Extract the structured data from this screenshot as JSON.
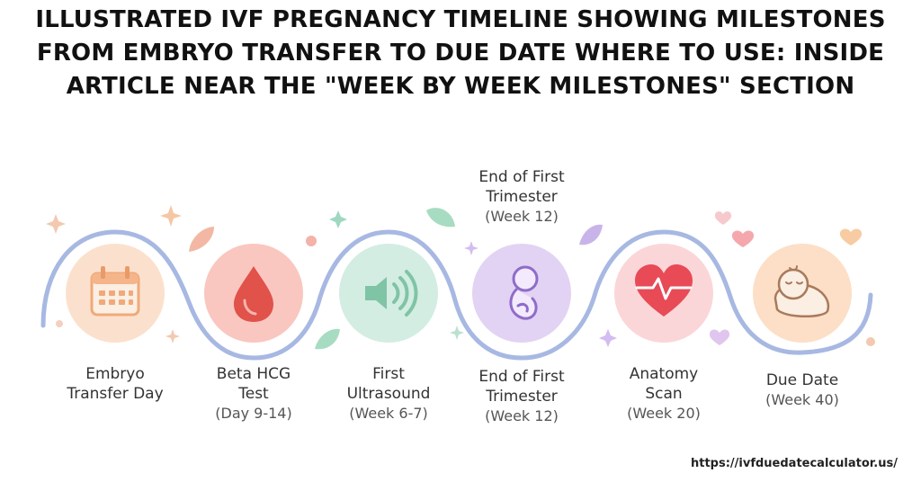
{
  "headline": {
    "lines": [
      "ILLUSTRATED IVF PREGNANCY TIMELINE SHOWING MILESTONES",
      "FROM EMBRYO TRANSFER TO DUE DATE WHERE TO USE: INSIDE",
      "ARTICLE NEAR THE \"WEEK BY WEEK MILESTONES\" SECTION"
    ]
  },
  "milestones": [
    {
      "name_lines": [
        "Embryo",
        "Transfer Day"
      ],
      "sub": "",
      "icon": "calendar-icon",
      "color": "#f7c9a6"
    },
    {
      "name_lines": [
        "Beta HCG",
        "Test"
      ],
      "sub": "(Day 9-14)",
      "icon": "blood-drop-icon",
      "color": "#f3a59c"
    },
    {
      "name_lines": [
        "First",
        "Ultrasound"
      ],
      "sub": "(Week 6-7)",
      "icon": "ultrasound-wave-icon",
      "color": "#b6e0cf"
    },
    {
      "name_lines": [
        "End of First",
        "Trimester"
      ],
      "sub": "(Week 12)",
      "icon": "fetus-icon",
      "color": "#cdb6ea"
    },
    {
      "name_lines": [
        "Anatomy",
        "Scan"
      ],
      "sub": "(Week 20)",
      "icon": "heartbeat-icon",
      "color": "#f6b8bd"
    },
    {
      "name_lines": [
        "Due Date"
      ],
      "sub": "(Week 40)",
      "icon": "sleeping-baby-icon",
      "color": "#f8cda7"
    }
  ],
  "top_label": {
    "name_lines": [
      "End of First",
      "Trimester"
    ],
    "sub": "(Week 12)"
  },
  "footer_url": "https://ivfduedatecalculator.us/",
  "colors": {
    "line": "#a7b8e2",
    "text": "#333333",
    "title": "#111111"
  }
}
